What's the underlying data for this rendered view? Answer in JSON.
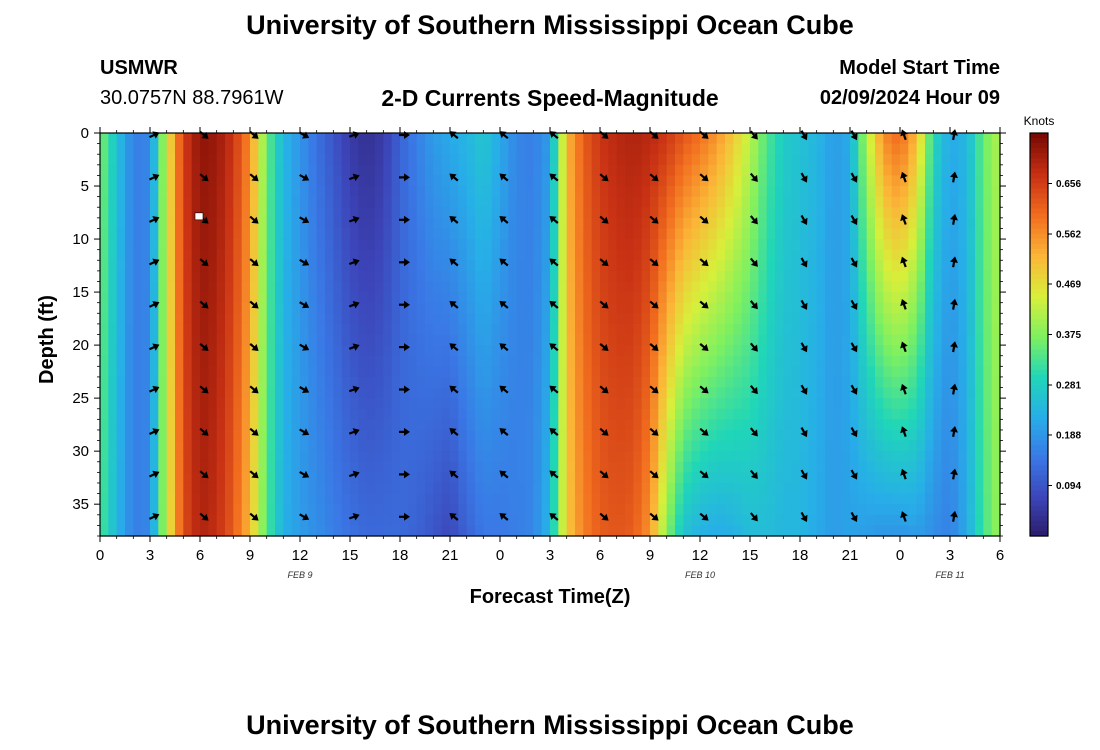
{
  "header": {
    "title": "University of Southern Mississippi Ocean Cube",
    "station": "USMWR",
    "coords": "30.0757N  88.7961W",
    "subtitle": "2-D Currents Speed-Magnitude",
    "model_label": "Model Start Time",
    "model_time": "02/09/2024 Hour 09"
  },
  "footer": {
    "title": "University of Southern Mississippi Ocean Cube"
  },
  "colors": {
    "scale": [
      "#2b1a66",
      "#3c44b8",
      "#3a78e6",
      "#27aee8",
      "#20d6b8",
      "#7ef060",
      "#d8ef3a",
      "#fbb637",
      "#f26e1f",
      "#c83114",
      "#7a0a04"
    ]
  },
  "chart_data": {
    "type": "heatmap",
    "title": "2-D Currents Speed-Magnitude",
    "xlabel": "Forecast Time(Z)",
    "ylabel": "Depth (ft)",
    "x_hours": [
      0,
      3,
      6,
      9,
      12,
      15,
      18,
      21,
      24,
      27,
      30,
      33,
      36,
      39,
      42,
      45,
      48,
      51,
      54
    ],
    "x_tick_labels": [
      "0",
      "3",
      "6",
      "9",
      "12",
      "15",
      "18",
      "21",
      "0",
      "3",
      "6",
      "9",
      "12",
      "15",
      "18",
      "21",
      "0",
      "3",
      "6"
    ],
    "y_ticks": [
      0,
      5,
      10,
      15,
      20,
      25,
      30,
      35
    ],
    "y_tick_labels": [
      "0",
      "5",
      "10",
      "15",
      "20",
      "25",
      "30",
      "35"
    ],
    "ylim": [
      0,
      38
    ],
    "date_labels": [
      {
        "text": "FEB 9",
        "hour": 12
      },
      {
        "text": "FEB 10",
        "hour": 36
      },
      {
        "text": "FEB 11",
        "hour": 51
      }
    ],
    "colorbar": {
      "title": "Knots",
      "min": 0.0,
      "max": 0.75,
      "tick_values": [
        0.656,
        0.562,
        0.469,
        0.375,
        0.281,
        0.188,
        0.094
      ],
      "tick_labels": [
        "0.656",
        "0.562",
        "0.469",
        "0.375",
        "0.281",
        "0.188",
        "0.094"
      ]
    },
    "speed_profile_surface": [
      [
        0,
        0.38
      ],
      [
        1,
        0.26
      ],
      [
        2,
        0.16
      ],
      [
        3,
        0.17
      ],
      [
        4,
        0.45
      ],
      [
        5,
        0.66
      ],
      [
        6,
        0.73
      ],
      [
        7,
        0.72
      ],
      [
        8,
        0.67
      ],
      [
        9,
        0.57
      ],
      [
        10,
        0.36
      ],
      [
        11,
        0.24
      ],
      [
        12,
        0.19
      ],
      [
        13,
        0.14
      ],
      [
        14,
        0.1
      ],
      [
        15,
        0.06
      ],
      [
        16,
        0.04
      ],
      [
        17,
        0.06
      ],
      [
        18,
        0.12
      ],
      [
        19,
        0.16
      ],
      [
        20,
        0.2
      ],
      [
        21,
        0.22
      ],
      [
        22,
        0.24
      ],
      [
        23,
        0.27
      ],
      [
        24,
        0.22
      ],
      [
        25,
        0.17
      ],
      [
        26,
        0.16
      ],
      [
        27,
        0.2
      ],
      [
        28,
        0.52
      ],
      [
        29,
        0.62
      ],
      [
        30,
        0.67
      ],
      [
        31,
        0.69
      ],
      [
        32,
        0.7
      ],
      [
        33,
        0.69
      ],
      [
        34,
        0.67
      ],
      [
        35,
        0.63
      ],
      [
        36,
        0.6
      ],
      [
        37,
        0.56
      ],
      [
        38,
        0.5
      ],
      [
        39,
        0.43
      ],
      [
        40,
        0.34
      ],
      [
        41,
        0.28
      ],
      [
        42,
        0.26
      ],
      [
        43,
        0.24
      ],
      [
        44,
        0.2
      ],
      [
        45,
        0.22
      ],
      [
        46,
        0.42
      ],
      [
        47,
        0.57
      ],
      [
        48,
        0.61
      ],
      [
        49,
        0.52
      ],
      [
        50,
        0.3
      ],
      [
        51,
        0.22
      ],
      [
        52,
        0.24
      ],
      [
        53,
        0.36
      ],
      [
        54,
        0.42
      ]
    ],
    "speed_profile_bottom": [
      [
        0,
        0.34
      ],
      [
        1,
        0.24
      ],
      [
        2,
        0.16
      ],
      [
        3,
        0.17
      ],
      [
        4,
        0.44
      ],
      [
        5,
        0.64
      ],
      [
        6,
        0.7
      ],
      [
        7,
        0.68
      ],
      [
        8,
        0.62
      ],
      [
        9,
        0.52
      ],
      [
        10,
        0.34
      ],
      [
        11,
        0.23
      ],
      [
        12,
        0.2
      ],
      [
        13,
        0.18
      ],
      [
        14,
        0.16
      ],
      [
        15,
        0.14
      ],
      [
        16,
        0.13
      ],
      [
        17,
        0.13
      ],
      [
        18,
        0.13
      ],
      [
        19,
        0.12
      ],
      [
        20,
        0.1
      ],
      [
        21,
        0.08
      ],
      [
        22,
        0.12
      ],
      [
        23,
        0.15
      ],
      [
        24,
        0.15
      ],
      [
        25,
        0.16
      ],
      [
        26,
        0.17
      ],
      [
        27,
        0.24
      ],
      [
        28,
        0.5
      ],
      [
        29,
        0.58
      ],
      [
        30,
        0.62
      ],
      [
        31,
        0.63
      ],
      [
        32,
        0.62
      ],
      [
        33,
        0.56
      ],
      [
        34,
        0.38
      ],
      [
        35,
        0.26
      ],
      [
        36,
        0.23
      ],
      [
        37,
        0.22
      ],
      [
        38,
        0.23
      ],
      [
        39,
        0.25
      ],
      [
        40,
        0.25
      ],
      [
        41,
        0.24
      ],
      [
        42,
        0.24
      ],
      [
        43,
        0.22
      ],
      [
        44,
        0.2
      ],
      [
        45,
        0.21
      ],
      [
        46,
        0.2
      ],
      [
        47,
        0.19
      ],
      [
        48,
        0.19
      ],
      [
        49,
        0.2
      ],
      [
        50,
        0.18
      ],
      [
        51,
        0.16
      ],
      [
        52,
        0.22
      ],
      [
        53,
        0.33
      ],
      [
        54,
        0.4
      ]
    ],
    "vector_hours": [
      3,
      6,
      9,
      12,
      15,
      18,
      21,
      24,
      27,
      30,
      33,
      36,
      39,
      42,
      45,
      48,
      51
    ],
    "vector_depths": [
      0,
      4,
      8,
      12,
      16,
      20,
      24,
      28,
      32,
      36
    ],
    "vector_direction_deg_by_hour": [
      [
        3,
        -25
      ],
      [
        6,
        40
      ],
      [
        9,
        40
      ],
      [
        12,
        30
      ],
      [
        15,
        -20
      ],
      [
        18,
        0
      ],
      [
        21,
        -140
      ],
      [
        24,
        -140
      ],
      [
        27,
        -140
      ],
      [
        30,
        40
      ],
      [
        33,
        40
      ],
      [
        36,
        40
      ],
      [
        39,
        50
      ],
      [
        42,
        60
      ],
      [
        45,
        60
      ],
      [
        48,
        -110
      ],
      [
        51,
        -80
      ]
    ],
    "marker": {
      "hour": 6,
      "depth": 8
    }
  }
}
